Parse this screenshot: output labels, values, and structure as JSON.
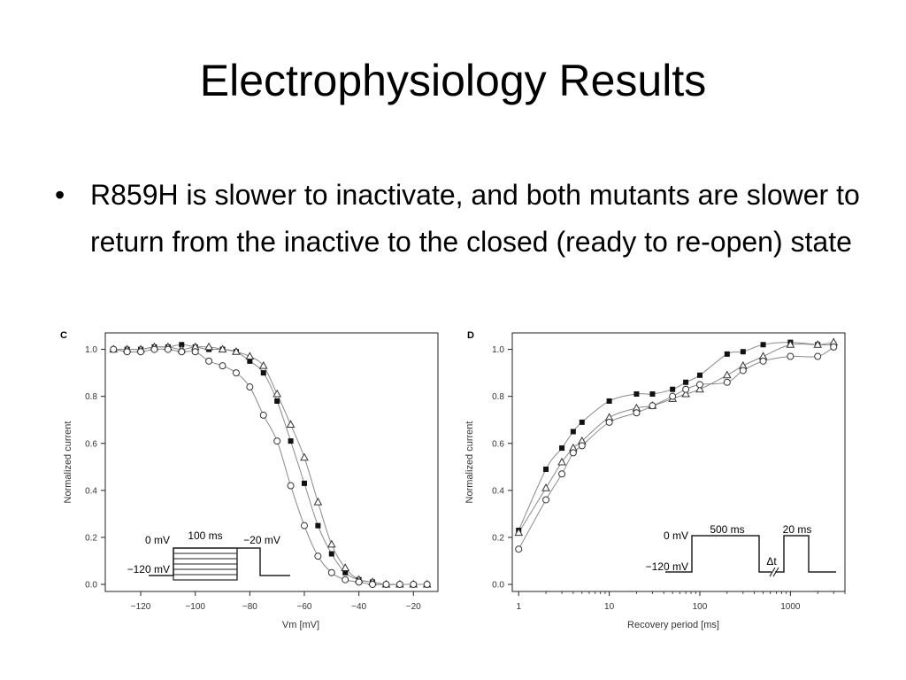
{
  "slide": {
    "title": "Electrophysiology Results",
    "bullet_glyph": "•",
    "bullet": "R859H is slower to inactivate, and both mutants are slower to return from the inactive to the closed (ready to re-open) state"
  },
  "chart_data": [
    {
      "type": "scatter",
      "panel_label": "C",
      "xlabel": "Vm [mV]",
      "ylabel": "Normalized current",
      "xlim": [
        -133,
        -11
      ],
      "ylim": [
        -0.03,
        1.07
      ],
      "xticks": [
        -120,
        -100,
        -80,
        -60,
        -40,
        -20
      ],
      "xtick_labels": [
        "−120",
        "−100",
        "−80",
        "−60",
        "−40",
        "−20"
      ],
      "yticks": [
        0.0,
        0.2,
        0.4,
        0.6,
        0.8,
        1.0
      ],
      "ytick_labels": [
        "0.0",
        "0.2",
        "0.4",
        "0.6",
        "0.8",
        "1.0"
      ],
      "grid": false,
      "marker_styles": [
        "filled-square",
        "open-triangle",
        "open-circle"
      ],
      "x": [
        -130,
        -125,
        -120,
        -115,
        -110,
        -105,
        -100,
        -95,
        -90,
        -85,
        -80,
        -75,
        -70,
        -65,
        -60,
        -55,
        -50,
        -45,
        -40,
        -35,
        -30,
        -25,
        -20,
        -15
      ],
      "series": [
        {
          "marker": "filled-square",
          "values": [
            1.0,
            1.0,
            1.0,
            1.01,
            1.01,
            1.02,
            1.01,
            1.0,
            1.0,
            0.99,
            0.95,
            0.9,
            0.78,
            0.61,
            0.43,
            0.25,
            0.13,
            0.05,
            0.02,
            0.01,
            0.0,
            0.0,
            0.0,
            0.0
          ]
        },
        {
          "marker": "open-triangle",
          "values": [
            1.0,
            1.0,
            1.0,
            1.01,
            1.01,
            1.0,
            1.01,
            1.01,
            1.0,
            0.99,
            0.97,
            0.93,
            0.81,
            0.68,
            0.54,
            0.35,
            0.17,
            0.07,
            0.02,
            0.01,
            0.0,
            0.0,
            0.0,
            0.0
          ]
        },
        {
          "marker": "open-circle",
          "values": [
            1.0,
            0.99,
            0.99,
            1.0,
            1.0,
            0.99,
            0.99,
            0.95,
            0.93,
            0.9,
            0.84,
            0.72,
            0.61,
            0.42,
            0.25,
            0.12,
            0.05,
            0.02,
            0.01,
            0.0,
            0.0,
            0.0,
            0.0,
            0.0
          ]
        }
      ],
      "inset": {
        "type": "voltage-protocol",
        "label_holding": "0 mV",
        "label_duration": "100 ms",
        "label_test": "−20 mV",
        "label_rest": "−120 mV"
      }
    },
    {
      "type": "scatter",
      "panel_label": "D",
      "xlabel": "Recovery period [ms]",
      "ylabel": "Normalized current",
      "xscale": "log",
      "xlim": [
        0.85,
        4000
      ],
      "ylim": [
        -0.03,
        1.07
      ],
      "xticks": [
        1,
        10,
        100,
        1000
      ],
      "xtick_labels": [
        "1",
        "10",
        "100",
        "1000"
      ],
      "yticks": [
        0.0,
        0.2,
        0.4,
        0.6,
        0.8,
        1.0
      ],
      "ytick_labels": [
        "0.0",
        "0.2",
        "0.4",
        "0.6",
        "0.8",
        "1.0"
      ],
      "grid": false,
      "marker_styles": [
        "filled-square",
        "open-triangle",
        "open-circle"
      ],
      "x": [
        1,
        2,
        3,
        4,
        5,
        10,
        20,
        30,
        50,
        70,
        100,
        200,
        300,
        500,
        1000,
        2000,
        3000
      ],
      "series": [
        {
          "marker": "filled-square",
          "values": [
            0.23,
            0.49,
            0.58,
            0.65,
            0.69,
            0.78,
            0.81,
            0.81,
            0.83,
            0.86,
            0.89,
            0.98,
            0.99,
            1.02,
            1.03,
            1.02,
            1.02
          ]
        },
        {
          "marker": "open-triangle",
          "values": [
            0.22,
            0.41,
            0.52,
            0.58,
            0.61,
            0.71,
            0.75,
            0.76,
            0.79,
            0.81,
            0.83,
            0.89,
            0.93,
            0.97,
            1.02,
            1.02,
            1.03
          ]
        },
        {
          "marker": "open-circle",
          "values": [
            0.15,
            0.36,
            0.47,
            0.56,
            0.59,
            0.69,
            0.73,
            0.76,
            0.8,
            0.83,
            0.85,
            0.86,
            0.91,
            0.95,
            0.97,
            0.97,
            1.01
          ]
        }
      ],
      "inset": {
        "type": "voltage-protocol",
        "label_holding": "0 mV",
        "label_duration_1": "500 ms",
        "label_duration_2": "20 ms",
        "label_rest": "−120 mV",
        "label_interval": "Δt"
      }
    }
  ]
}
